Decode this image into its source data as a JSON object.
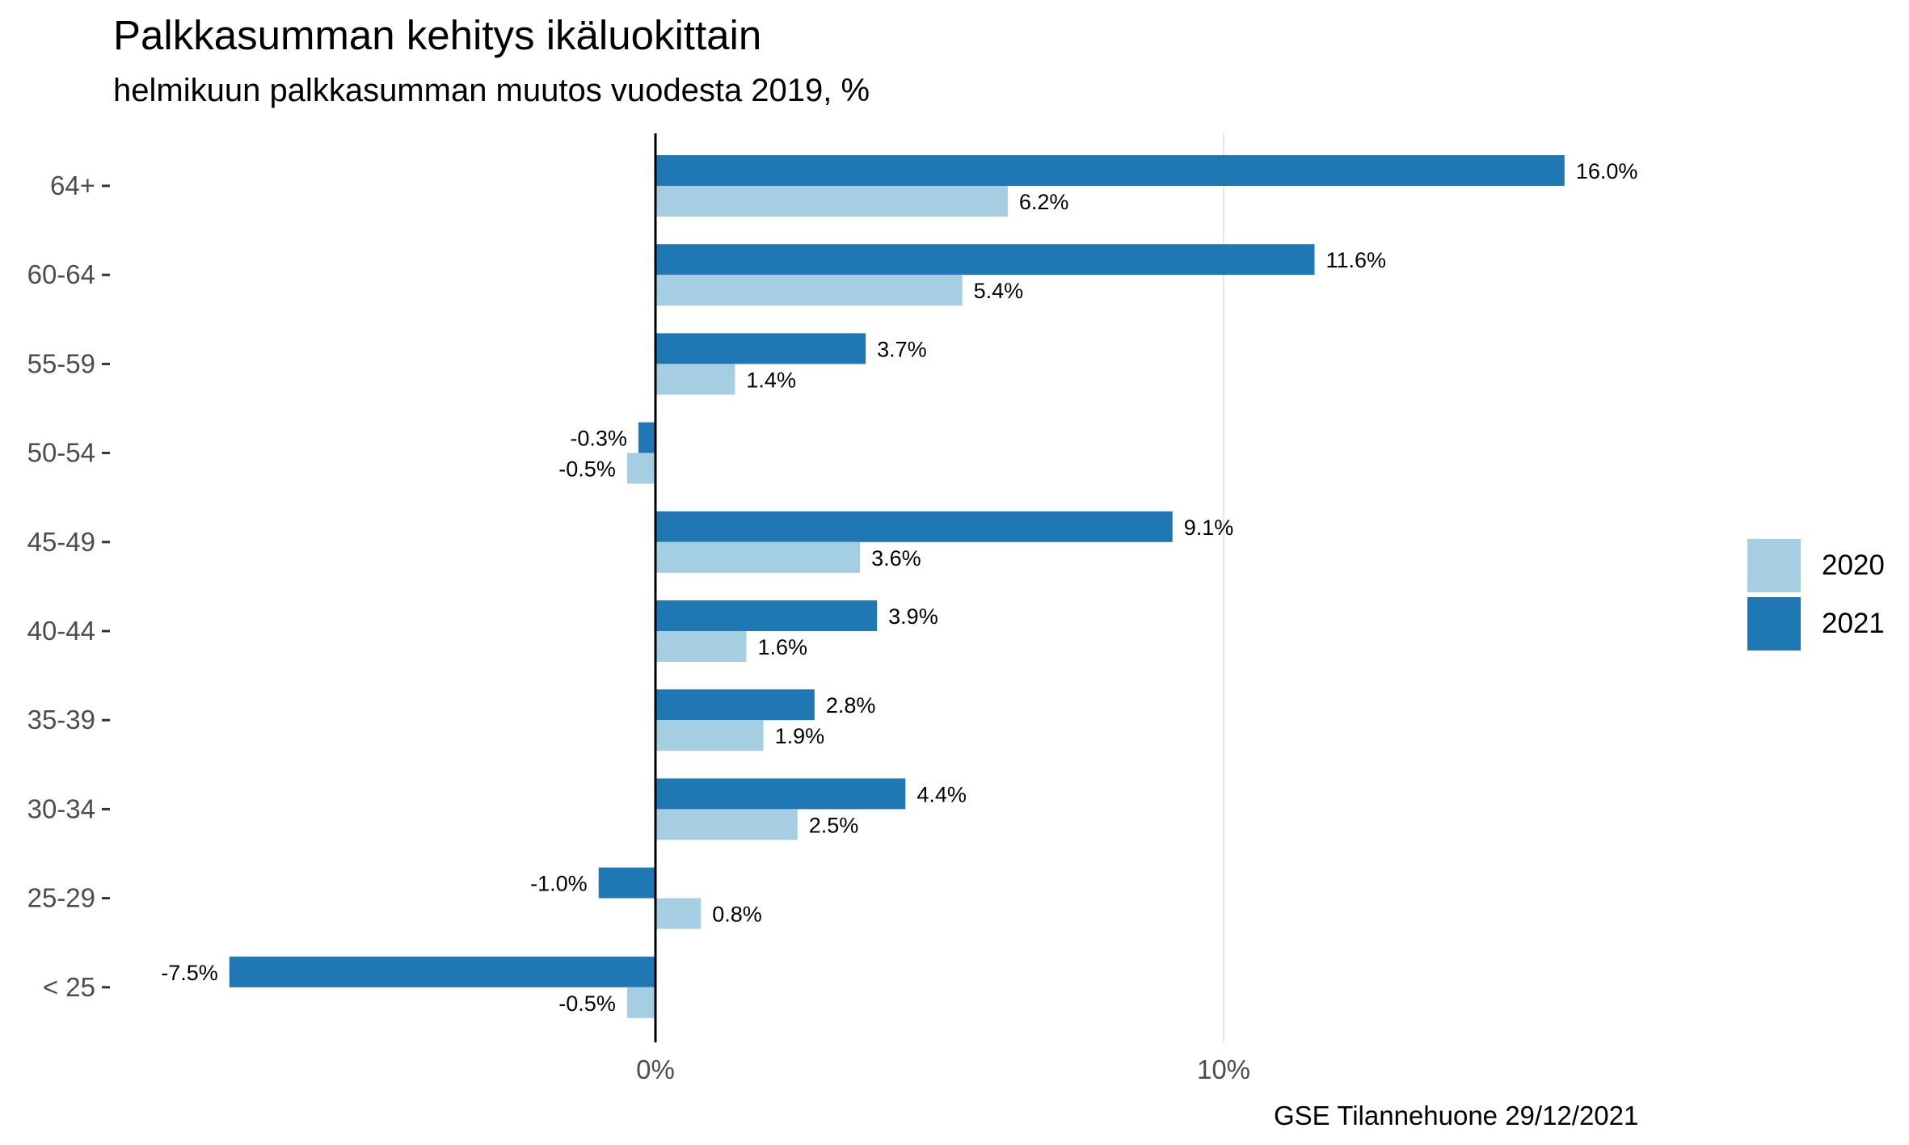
{
  "title": "Palkkasumman kehitys ikäluokittain",
  "subtitle": "helmikuun palkkasumman muutos vuodesta 2019, %",
  "caption": "GSE Tilannehuone 29/12/2021",
  "colors": {
    "2020": "#a6cee3",
    "2021": "#1f78b4"
  },
  "chart_data": {
    "type": "bar",
    "orientation": "horizontal",
    "categories": [
      "64+",
      "60-64",
      "55-59",
      "50-54",
      "45-49",
      "40-44",
      "35-39",
      "30-34",
      "25-29",
      "< 25"
    ],
    "series": [
      {
        "name": "2021",
        "values": [
          16.0,
          11.6,
          3.7,
          -0.3,
          9.1,
          3.9,
          2.8,
          4.4,
          -1.0,
          -7.5
        ],
        "labels": [
          "16.0%",
          "11.6%",
          "3.7%",
          "-0.3%",
          "9.1%",
          "3.9%",
          "2.8%",
          "4.4%",
          "-1.0%",
          "-7.5%"
        ]
      },
      {
        "name": "2020",
        "values": [
          6.2,
          5.4,
          1.4,
          -0.5,
          3.6,
          1.6,
          1.9,
          2.5,
          0.8,
          -0.5
        ],
        "labels": [
          "6.2%",
          "5.4%",
          "1.4%",
          "-0.5%",
          "3.6%",
          "1.6%",
          "1.9%",
          "2.5%",
          "0.8%",
          "-0.5%"
        ]
      }
    ],
    "xticks": [
      0,
      10
    ],
    "xtick_labels": [
      "0%",
      "10%"
    ],
    "xlim": [
      -9.2,
      19.7
    ],
    "grid": "vertical major gridlines",
    "legend": {
      "position": "right",
      "entries": [
        "2020",
        "2021"
      ]
    }
  }
}
